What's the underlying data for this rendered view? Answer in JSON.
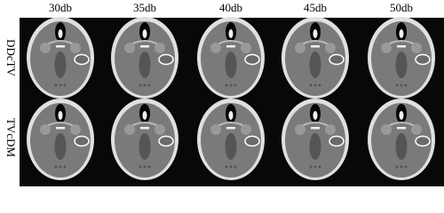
{
  "columns": [
    "30db",
    "35db",
    "40db",
    "45db",
    "50db"
  ],
  "rows": [
    "DDcTV",
    "TVcDM"
  ]
}
